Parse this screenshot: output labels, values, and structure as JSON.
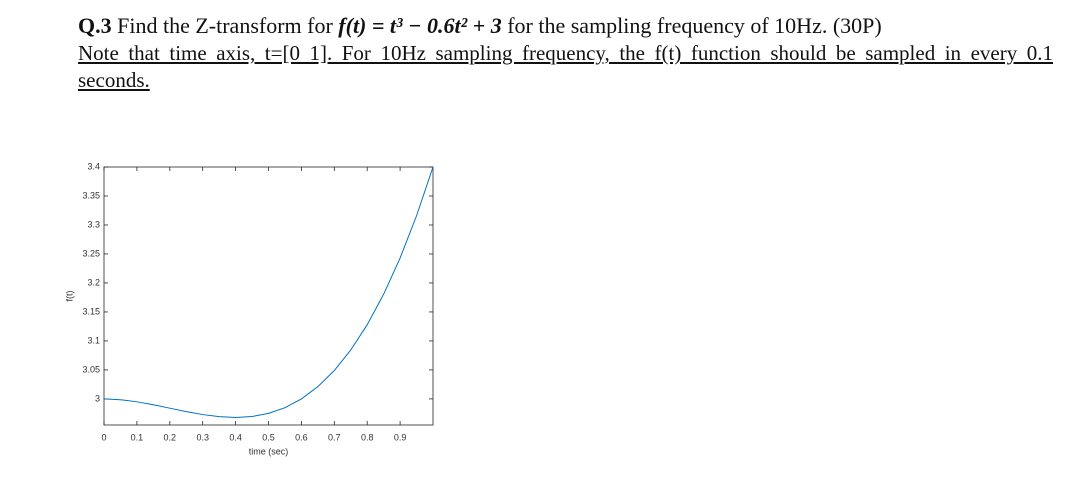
{
  "question": {
    "number": "Q.3",
    "text_before": "Find the Z-transform for",
    "formula": "f(t) = t³ − 0.6t² + 3",
    "text_after": "for the sampling frequency of 10Hz.",
    "points": "(30P)",
    "note": "Note that time axis, t=[0 1]. For 10Hz sampling frequency, the f(t) function should be sampled in every 0.1 seconds."
  },
  "chart_data": {
    "type": "line",
    "x_label": "time (sec)",
    "y_label": "f(t)",
    "color": "#0072bd",
    "x": [
      0,
      0.05,
      0.1,
      0.15,
      0.2,
      0.25,
      0.3,
      0.35,
      0.4,
      0.45,
      0.5,
      0.55,
      0.6,
      0.65,
      0.7,
      0.75,
      0.8,
      0.85,
      0.9,
      0.95,
      1
    ],
    "values": [
      3,
      2.9986,
      2.995,
      2.9899,
      2.984,
      2.9781,
      2.973,
      2.9694,
      2.968,
      2.9696,
      2.975,
      2.9849,
      3,
      3.0211,
      3.049,
      3.0844,
      3.128,
      3.1806,
      3.243,
      3.3159,
      3.4
    ],
    "xlim": [
      0,
      1
    ],
    "xticks": [
      0,
      0.1,
      0.2,
      0.3,
      0.4,
      0.5,
      0.6,
      0.7,
      0.8,
      0.9
    ],
    "ylim": [
      2.955,
      3.4
    ],
    "yticks": [
      3,
      3.05,
      3.1,
      3.15,
      3.2,
      3.25,
      3.3,
      3.35,
      3.4
    ]
  }
}
